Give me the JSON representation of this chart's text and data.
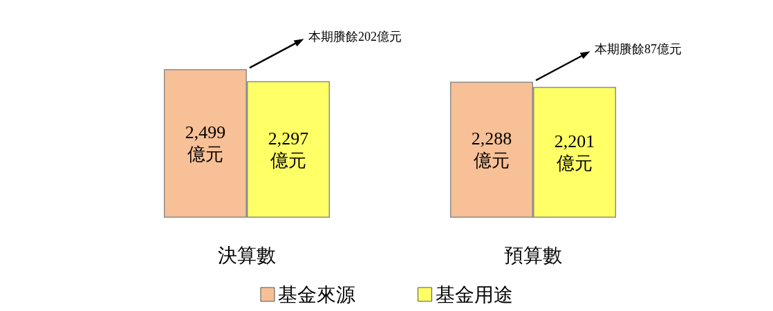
{
  "chart_data": {
    "type": "bar",
    "categories": [
      "決算數",
      "預算數"
    ],
    "series": [
      {
        "name": "基金來源",
        "color": "#f8c096",
        "values": [
          2499,
          2288
        ],
        "value_labels": [
          "2,499\n億元",
          "2,288\n億元"
        ]
      },
      {
        "name": "基金用途",
        "color": "#ffff66",
        "values": [
          2297,
          2201
        ],
        "value_labels": [
          "2,297\n億元",
          "2,201\n億元"
        ]
      }
    ],
    "annotations": [
      {
        "text": "本期賸餘202億元",
        "x": "決算數",
        "y": 2499
      },
      {
        "text": "本期賸餘87億元",
        "x": "預算數",
        "y": 2288
      }
    ],
    "legend": "bottom",
    "tick_labels": "x"
  }
}
